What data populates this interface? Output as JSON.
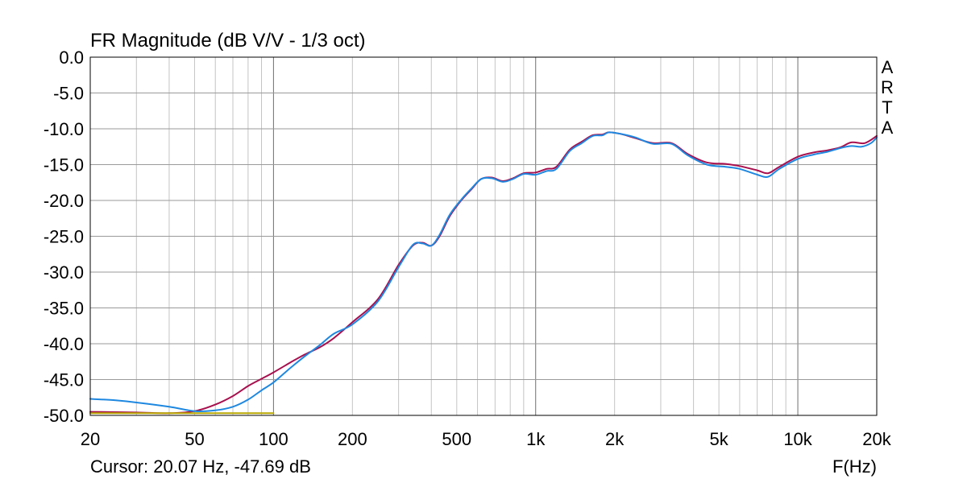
{
  "chart_data": {
    "type": "line",
    "title": "FR Magnitude (dB V/V - 1/3 oct)",
    "xlabel": "F(Hz)",
    "ylabel": "",
    "x_scale": "log",
    "xlim": [
      20,
      20000
    ],
    "ylim": [
      -50,
      0
    ],
    "grid": true,
    "x_ticks": [
      {
        "value": 20,
        "label": "20"
      },
      {
        "value": 50,
        "label": "50"
      },
      {
        "value": 100,
        "label": "100"
      },
      {
        "value": 200,
        "label": "200"
      },
      {
        "value": 500,
        "label": "500"
      },
      {
        "value": 1000,
        "label": "1k"
      },
      {
        "value": 2000,
        "label": "2k"
      },
      {
        "value": 5000,
        "label": "5k"
      },
      {
        "value": 10000,
        "label": "10k"
      },
      {
        "value": 20000,
        "label": "20k"
      }
    ],
    "y_ticks": [
      {
        "value": 0,
        "label": "0.0"
      },
      {
        "value": -5,
        "label": "-5.0"
      },
      {
        "value": -10,
        "label": "-10.0"
      },
      {
        "value": -15,
        "label": "-15.0"
      },
      {
        "value": -20,
        "label": "-20.0"
      },
      {
        "value": -25,
        "label": "-25.0"
      },
      {
        "value": -30,
        "label": "-30.0"
      },
      {
        "value": -35,
        "label": "-35.0"
      },
      {
        "value": -40,
        "label": "-40.0"
      },
      {
        "value": -45,
        "label": "-45.0"
      },
      {
        "value": -50,
        "label": "-50.0"
      }
    ],
    "series": [
      {
        "color": "#a8104e",
        "points": [
          [
            20,
            -49.5
          ],
          [
            30,
            -49.6
          ],
          [
            40,
            -49.7
          ],
          [
            50,
            -49.4
          ],
          [
            60,
            -48.5
          ],
          [
            70,
            -47.3
          ],
          [
            80,
            -45.9
          ],
          [
            90,
            -44.9
          ],
          [
            100,
            -44.0
          ],
          [
            115,
            -42.7
          ],
          [
            130,
            -41.6
          ],
          [
            150,
            -40.5
          ],
          [
            170,
            -39.2
          ],
          [
            200,
            -37.0
          ],
          [
            250,
            -33.8
          ],
          [
            300,
            -29.0
          ],
          [
            340,
            -26.3
          ],
          [
            370,
            -25.9
          ],
          [
            400,
            -26.3
          ],
          [
            430,
            -25.0
          ],
          [
            470,
            -22.2
          ],
          [
            520,
            -20.0
          ],
          [
            570,
            -18.4
          ],
          [
            620,
            -17.0
          ],
          [
            680,
            -16.8
          ],
          [
            750,
            -17.3
          ],
          [
            820,
            -16.9
          ],
          [
            900,
            -16.2
          ],
          [
            1000,
            -16.1
          ],
          [
            1100,
            -15.6
          ],
          [
            1200,
            -15.3
          ],
          [
            1350,
            -12.9
          ],
          [
            1500,
            -11.8
          ],
          [
            1650,
            -10.9
          ],
          [
            1800,
            -10.8
          ],
          [
            1900,
            -10.5
          ],
          [
            2100,
            -10.7
          ],
          [
            2400,
            -11.3
          ],
          [
            2800,
            -12.0
          ],
          [
            3300,
            -12.0
          ],
          [
            3800,
            -13.5
          ],
          [
            4500,
            -14.7
          ],
          [
            5300,
            -14.9
          ],
          [
            6000,
            -15.2
          ],
          [
            7000,
            -15.8
          ],
          [
            7700,
            -16.2
          ],
          [
            8500,
            -15.3
          ],
          [
            10000,
            -13.9
          ],
          [
            11500,
            -13.3
          ],
          [
            13000,
            -13.0
          ],
          [
            14500,
            -12.6
          ],
          [
            16000,
            -11.9
          ],
          [
            18000,
            -12.0
          ],
          [
            20000,
            -11.0
          ]
        ]
      },
      {
        "color": "#1e88e0",
        "points": [
          [
            20,
            -47.7
          ],
          [
            25,
            -47.9
          ],
          [
            30,
            -48.2
          ],
          [
            40,
            -48.8
          ],
          [
            50,
            -49.4
          ],
          [
            60,
            -49.3
          ],
          [
            70,
            -48.8
          ],
          [
            80,
            -47.8
          ],
          [
            90,
            -46.5
          ],
          [
            100,
            -45.4
          ],
          [
            115,
            -43.5
          ],
          [
            130,
            -41.9
          ],
          [
            150,
            -40.2
          ],
          [
            170,
            -38.6
          ],
          [
            200,
            -37.3
          ],
          [
            250,
            -34.1
          ],
          [
            300,
            -29.3
          ],
          [
            340,
            -26.2
          ],
          [
            370,
            -26.0
          ],
          [
            400,
            -26.3
          ],
          [
            430,
            -24.8
          ],
          [
            470,
            -22.0
          ],
          [
            520,
            -19.9
          ],
          [
            570,
            -18.3
          ],
          [
            620,
            -17.0
          ],
          [
            680,
            -16.9
          ],
          [
            750,
            -17.4
          ],
          [
            820,
            -17.0
          ],
          [
            900,
            -16.3
          ],
          [
            1000,
            -16.4
          ],
          [
            1100,
            -15.9
          ],
          [
            1200,
            -15.6
          ],
          [
            1350,
            -13.1
          ],
          [
            1500,
            -12.0
          ],
          [
            1650,
            -11.0
          ],
          [
            1800,
            -10.9
          ],
          [
            1900,
            -10.5
          ],
          [
            2100,
            -10.7
          ],
          [
            2400,
            -11.2
          ],
          [
            2800,
            -12.1
          ],
          [
            3300,
            -12.1
          ],
          [
            3800,
            -13.7
          ],
          [
            4500,
            -15.0
          ],
          [
            5300,
            -15.3
          ],
          [
            6000,
            -15.6
          ],
          [
            7000,
            -16.4
          ],
          [
            7700,
            -16.7
          ],
          [
            8500,
            -15.6
          ],
          [
            10000,
            -14.2
          ],
          [
            11500,
            -13.6
          ],
          [
            13000,
            -13.2
          ],
          [
            14500,
            -12.7
          ],
          [
            16000,
            -12.4
          ],
          [
            17500,
            -12.5
          ],
          [
            19000,
            -12.0
          ],
          [
            20000,
            -11.2
          ]
        ]
      },
      {
        "color": "#b8a800",
        "points": [
          [
            20,
            -49.7
          ],
          [
            100,
            -49.7
          ]
        ]
      }
    ]
  },
  "cursor_text": "Cursor: 20.07 Hz, -47.69 dB",
  "brand_letters": [
    "A",
    "R",
    "T",
    "A"
  ]
}
